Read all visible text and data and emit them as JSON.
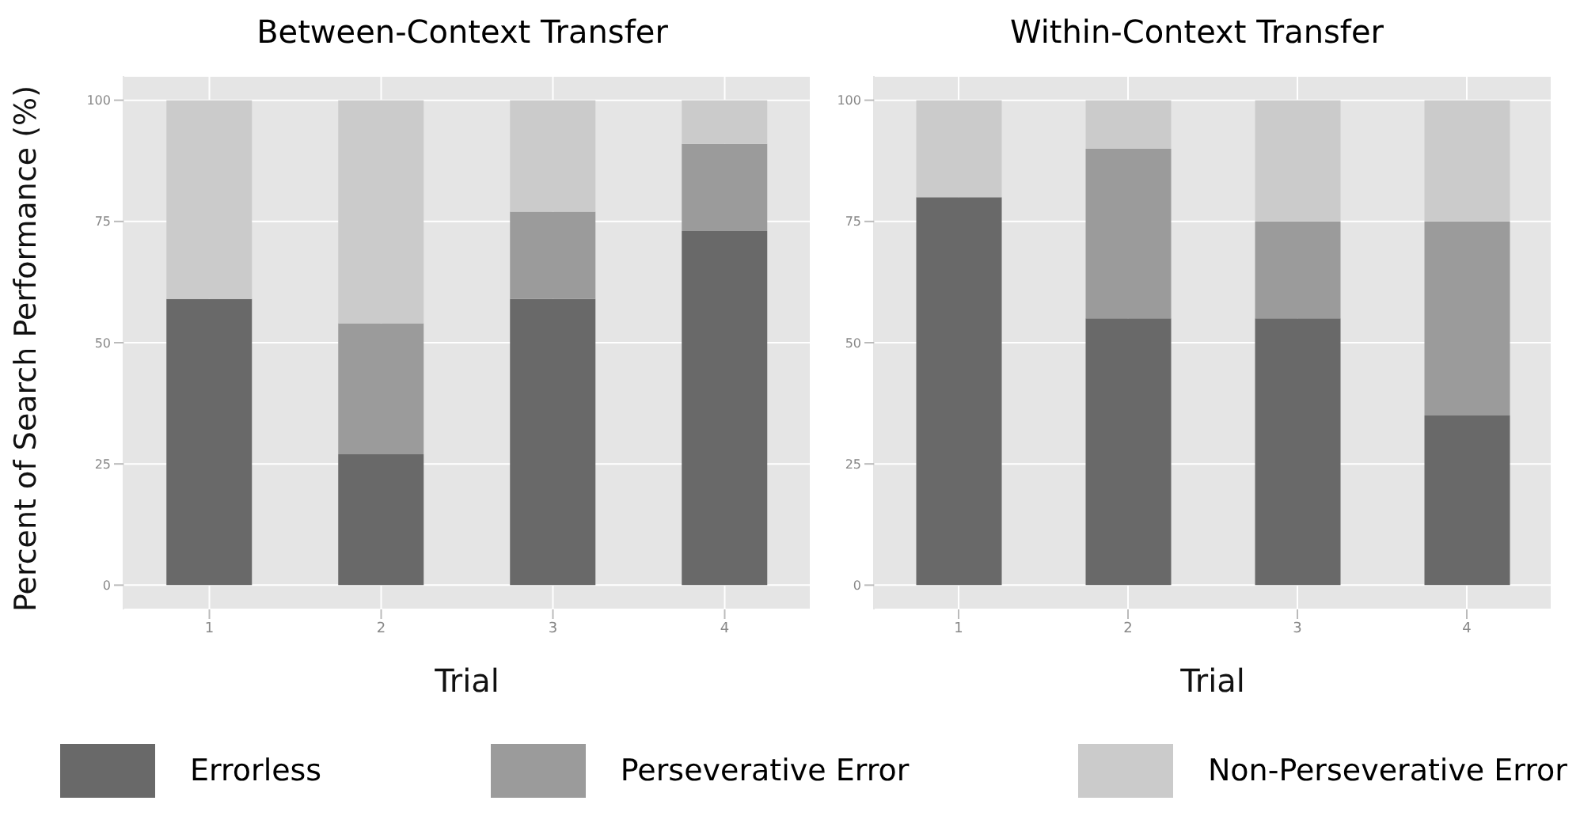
{
  "chart_data": [
    {
      "type": "bar",
      "title": "Between-Context Transfer",
      "xlabel": "Trial",
      "ylabel": "Percent of Search Performance (%)",
      "categories": [
        "1",
        "2",
        "3",
        "4"
      ],
      "stacked": true,
      "ylim": [
        -5,
        105
      ],
      "yticks": [
        0,
        25,
        50,
        75,
        100
      ],
      "grid": true,
      "legend": "bottom",
      "series": [
        {
          "name": "Errorless",
          "color": "#696969",
          "values": [
            59,
            27,
            59,
            73
          ]
        },
        {
          "name": "Perseverative Error",
          "color": "#9b9b9b",
          "values": [
            0,
            27,
            18,
            18
          ]
        },
        {
          "name": "Non-Perseverative Error",
          "color": "#cbcbcb",
          "values": [
            41,
            46,
            23,
            9
          ]
        }
      ]
    },
    {
      "type": "bar",
      "title": "Within-Context Transfer",
      "xlabel": "Trial",
      "categories": [
        "1",
        "2",
        "3",
        "4"
      ],
      "stacked": true,
      "ylim": [
        -5,
        105
      ],
      "yticks": [
        0,
        25,
        50,
        75,
        100
      ],
      "grid": true,
      "series": [
        {
          "color": "#696969",
          "values": [
            80,
            55,
            55,
            35
          ]
        },
        {
          "color": "#9b9b9b",
          "values": [
            0,
            35,
            20,
            40
          ]
        },
        {
          "color": "#cbcbcb",
          "values": [
            20,
            10,
            25,
            25
          ]
        }
      ]
    }
  ]
}
